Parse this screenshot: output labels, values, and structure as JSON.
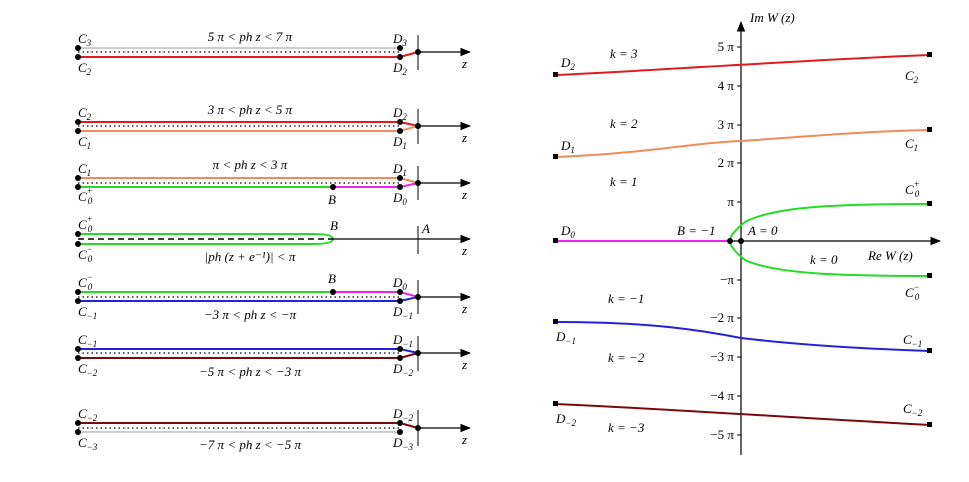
{
  "colors": {
    "k3": "#e41a1c",
    "k2": "#f08c5a",
    "k1": "#22dd22",
    "k0_branch": "#ee22ee",
    "km1": "#2222dd",
    "km2": "#7a0a0a",
    "axis": "#000000"
  },
  "left_panel": {
    "axis_label": "z",
    "point_A": "A",
    "point_B": "B",
    "rows": [
      {
        "top_left": "C",
        "top_left_sub": "3",
        "bottom_left": "C",
        "bottom_left_sub": "2",
        "top_right": "D",
        "top_right_sub": "3",
        "bottom_right": "D",
        "bottom_right_sub": "2",
        "condition": "5 π < ph z < 7 π"
      },
      {
        "top_left": "C",
        "top_left_sub": "2",
        "bottom_left": "C",
        "bottom_left_sub": "1",
        "top_right": "D",
        "top_right_sub": "2",
        "bottom_right": "D",
        "bottom_right_sub": "1",
        "condition": "3 π < ph z < 5 π"
      },
      {
        "top_left": "C",
        "top_left_sub": "1",
        "bottom_left": "C",
        "bottom_left_sup": "+",
        "bottom_left_sub": "0",
        "top_right": "D",
        "top_right_sub": "1",
        "bottom_right": "D",
        "bottom_right_sub": "0",
        "condition": "π < ph z < 3 π"
      },
      {
        "top_left": "C",
        "top_left_sup": "+",
        "top_left_sub": "0",
        "bottom_left": "C",
        "bottom_left_sup": "−",
        "bottom_left_sub": "0",
        "condition": "|ph (z + e⁻¹)| < π"
      },
      {
        "top_left": "C",
        "top_left_sup": "−",
        "top_left_sub": "0",
        "bottom_left": "C",
        "bottom_left_sub": "−1",
        "top_right": "D",
        "top_right_sub": "0",
        "bottom_right": "D",
        "bottom_right_sub": "−1",
        "condition": "−3 π < ph z < −π"
      },
      {
        "top_left": "C",
        "top_left_sub": "−1",
        "bottom_left": "C",
        "bottom_left_sub": "−2",
        "top_right": "D",
        "top_right_sub": "−1",
        "bottom_right": "D",
        "bottom_right_sub": "−2",
        "condition": "−5 π < ph z < −3 π"
      },
      {
        "top_left": "C",
        "top_left_sub": "−2",
        "bottom_left": "C",
        "bottom_left_sub": "−3",
        "top_right": "D",
        "top_right_sub": "−2",
        "bottom_right": "D",
        "bottom_right_sub": "−3",
        "condition": "−7 π < ph z < −5 π"
      }
    ]
  },
  "right_panel": {
    "xlabel": "Re W (z)",
    "ylabel": "Im W (z)",
    "yticks": [
      {
        "value": 5,
        "label": "5 π"
      },
      {
        "value": 4,
        "label": "4 π"
      },
      {
        "value": 3,
        "label": "3 π"
      },
      {
        "value": 2,
        "label": "2 π"
      },
      {
        "value": 1,
        "label": "π"
      },
      {
        "value": -1,
        "label": "−π"
      },
      {
        "value": -2,
        "label": "−2 π"
      },
      {
        "value": -3,
        "label": "−3 π"
      },
      {
        "value": -4,
        "label": "−4 π"
      },
      {
        "value": -5,
        "label": "−5 π"
      }
    ],
    "branch_labels": [
      {
        "text": "k = 3",
        "key": "k3"
      },
      {
        "text": "k = 2",
        "key": "k2"
      },
      {
        "text": "k = 1",
        "key": "k1"
      },
      {
        "text": "k = 0",
        "key": "k0"
      },
      {
        "text": "k = −1",
        "key": "km1"
      },
      {
        "text": "k = −2",
        "key": "km2"
      },
      {
        "text": "k = −3",
        "key": "km3"
      }
    ],
    "point_labels": {
      "B": "B = −1",
      "A": "A = 0"
    },
    "end_labels": [
      {
        "key": "D2",
        "base": "D",
        "sub": "2"
      },
      {
        "key": "C2",
        "base": "C",
        "sub": "2"
      },
      {
        "key": "D1",
        "base": "D",
        "sub": "1"
      },
      {
        "key": "C1",
        "base": "C",
        "sub": "1"
      },
      {
        "key": "C0p",
        "base": "C",
        "sub": "0",
        "sup": "+"
      },
      {
        "key": "D0",
        "base": "D",
        "sub": "0"
      },
      {
        "key": "C0m",
        "base": "C",
        "sub": "0",
        "sup": "−"
      },
      {
        "key": "Dm1",
        "base": "D",
        "sub": "−1"
      },
      {
        "key": "Cm1",
        "base": "C",
        "sub": "−1"
      },
      {
        "key": "Dm2",
        "base": "D",
        "sub": "−2"
      },
      {
        "key": "Cm2",
        "base": "C",
        "sub": "−2"
      }
    ]
  }
}
